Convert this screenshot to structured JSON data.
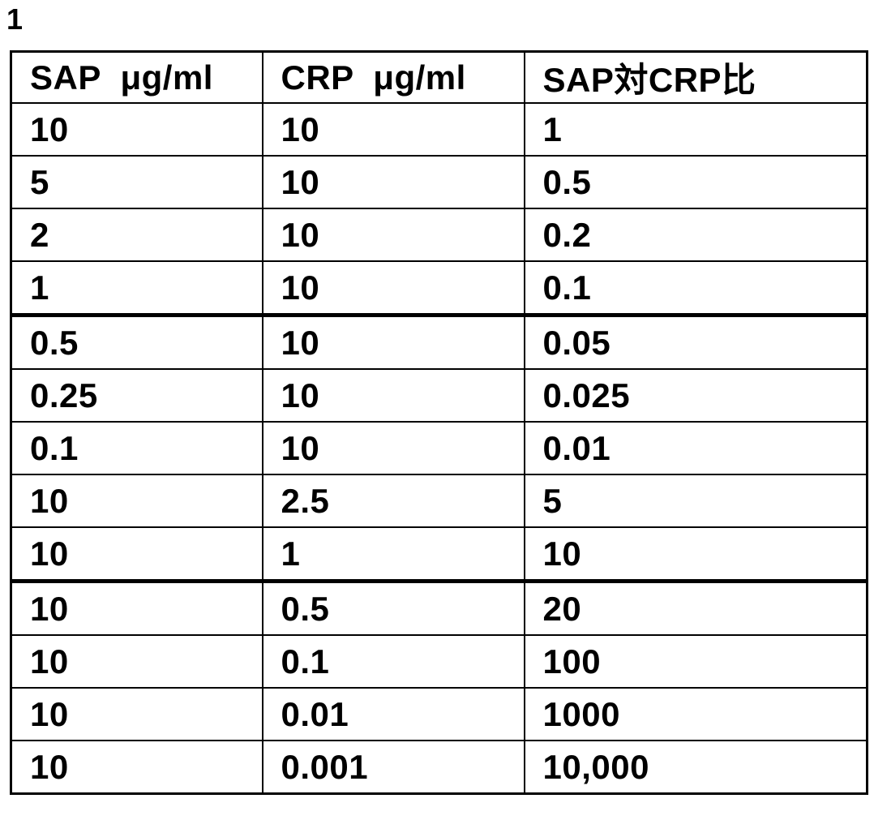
{
  "figure": {
    "label": "1"
  },
  "colors": {
    "ink": "#000000",
    "paper": "#ffffff"
  },
  "table": {
    "columns": [
      "SAP  μg/ml",
      "CRP  μg/ml",
      "SAP対CRP比"
    ],
    "rows": [
      [
        "10",
        "10",
        "1"
      ],
      [
        "5",
        "10",
        "0.5"
      ],
      [
        "2",
        "10",
        "0.2"
      ],
      [
        "1",
        "10",
        "0.1"
      ],
      [
        "0.5",
        "10",
        "0.05"
      ],
      [
        "0.25",
        "10",
        "0.025"
      ],
      [
        "0.1",
        "10",
        "0.01"
      ],
      [
        "10",
        "2.5",
        "5"
      ],
      [
        "10",
        "1",
        "10"
      ],
      [
        "10",
        "0.5",
        "20"
      ],
      [
        "10",
        "0.1",
        "100"
      ],
      [
        "10",
        "0.01",
        "1000"
      ],
      [
        "10",
        "0.001",
        "10,000"
      ]
    ]
  }
}
